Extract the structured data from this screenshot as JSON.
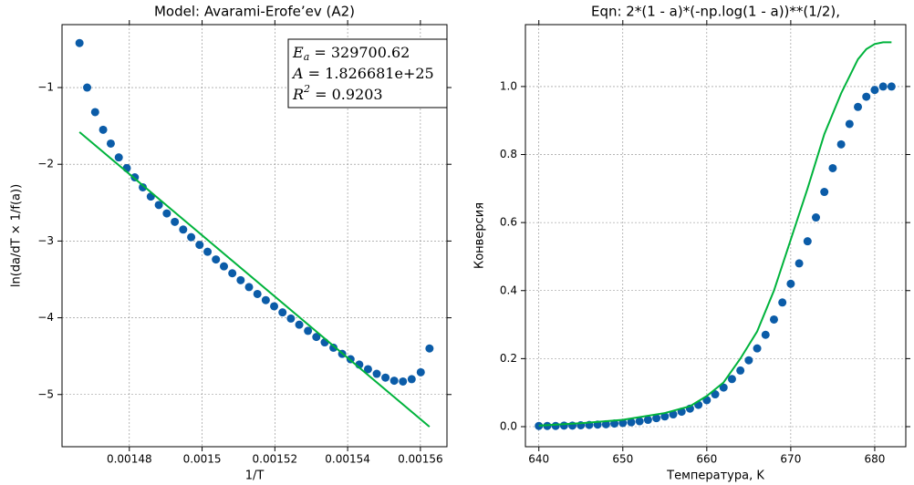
{
  "chart_data": [
    {
      "type": "scatter",
      "title": "Model: Avarami-Erofe’ev (A2)",
      "x_label": "1/T",
      "y_label": "ln(da/dT × 1/f(a))",
      "xlim": [
        0.0014615,
        0.0015673
      ],
      "ylim": [
        -5.68,
        -0.18
      ],
      "xticks": [
        0.00148,
        0.0015,
        0.00152,
        0.00154,
        0.00156
      ],
      "yticks": [
        {
          "value": -1,
          "label": "−1"
        },
        {
          "value": -2,
          "label": "−2"
        },
        {
          "value": -3,
          "label": "−3"
        },
        {
          "value": -4,
          "label": "−4"
        },
        {
          "value": -5,
          "label": "−5"
        }
      ],
      "grid": true,
      "annotations": [
        {
          "symbol": "E",
          "sub": "a",
          "text": " = 329700.62"
        },
        {
          "symbol": "A",
          "text": " = 1.826681e+25"
        },
        {
          "symbol": "R",
          "sup": "2",
          "text": " = 0.9203"
        }
      ],
      "series": [
        {
          "color": "#0b5ca8",
          "marker": "o",
          "x": [
            0.0014663,
            0.0014684,
            0.0014706,
            0.0014728,
            0.0014749,
            0.0014771,
            0.0014793,
            0.0014815,
            0.0014837,
            0.0014859,
            0.0014881,
            0.0014903,
            0.0014925,
            0.0014948,
            0.001497,
            0.0014993,
            0.0015015,
            0.0015038,
            0.001506,
            0.0015083,
            0.0015106,
            0.0015129,
            0.0015152,
            0.0015175,
            0.0015198,
            0.0015221,
            0.0015244,
            0.0015267,
            0.0015291,
            0.0015314,
            0.0015337,
            0.0015361,
            0.0015385,
            0.0015408,
            0.0015432,
            0.0015456,
            0.001548,
            0.0015504,
            0.0015528,
            0.0015552,
            0.0015576,
            0.0015601,
            0.0015625
          ],
          "values": [
            -0.42,
            -1.0,
            -1.32,
            -1.55,
            -1.73,
            -1.91,
            -2.05,
            -2.17,
            -2.3,
            -2.42,
            -2.53,
            -2.64,
            -2.75,
            -2.85,
            -2.95,
            -3.05,
            -3.14,
            -3.24,
            -3.33,
            -3.42,
            -3.51,
            -3.6,
            -3.69,
            -3.77,
            -3.85,
            -3.93,
            -4.01,
            -4.09,
            -4.17,
            -4.25,
            -4.32,
            -4.39,
            -4.47,
            -4.54,
            -4.61,
            -4.67,
            -4.73,
            -4.78,
            -4.82,
            -4.83,
            -4.8,
            -4.71,
            -4.4
          ]
        },
        {
          "color": "#00b33c",
          "linestyle": "-",
          "x": [
            0.0014663,
            0.0015625
          ],
          "values": [
            -1.58,
            -5.42
          ]
        }
      ]
    },
    {
      "type": "scatter",
      "title": "Eqn: 2*(1 - a)*(-np.log(1 - a))**(1/2),",
      "x_label": "Температура, K",
      "y_label": "Конверсия",
      "xlim": [
        638.4,
        683.7
      ],
      "ylim": [
        -0.059,
        1.182
      ],
      "xticks": [
        640,
        650,
        660,
        670,
        680
      ],
      "yticks": [
        {
          "value": 0,
          "label": "0.0"
        },
        0.2,
        0.4,
        0.6,
        0.8,
        {
          "value": 1,
          "label": "1.0"
        }
      ],
      "grid": true,
      "series": [
        {
          "color": "#0b5ca8",
          "marker": "o",
          "x": [
            640,
            641,
            642,
            643,
            644,
            645,
            646,
            647,
            648,
            649,
            650,
            651,
            652,
            653,
            654,
            655,
            656,
            657,
            658,
            659,
            660,
            661,
            662,
            663,
            664,
            665,
            666,
            667,
            668,
            669,
            670,
            671,
            672,
            673,
            674,
            675,
            676,
            677,
            678,
            679,
            680,
            681,
            682
          ],
          "values": [
            0.002,
            0.002,
            0.002,
            0.003,
            0.003,
            0.004,
            0.005,
            0.006,
            0.007,
            0.009,
            0.011,
            0.013,
            0.016,
            0.02,
            0.025,
            0.03,
            0.036,
            0.044,
            0.053,
            0.064,
            0.078,
            0.095,
            0.115,
            0.14,
            0.165,
            0.195,
            0.23,
            0.27,
            0.315,
            0.365,
            0.42,
            0.48,
            0.545,
            0.615,
            0.69,
            0.76,
            0.83,
            0.89,
            0.94,
            0.97,
            0.99,
            1.0,
            1.0
          ]
        },
        {
          "color": "#00b33c",
          "linestyle": "-",
          "x": [
            640,
            645,
            650,
            655,
            658,
            660,
            662,
            664,
            666,
            668,
            670,
            672,
            674,
            676,
            678,
            679,
            680,
            681,
            682
          ],
          "values": [
            0.003,
            0.01,
            0.02,
            0.04,
            0.06,
            0.09,
            0.13,
            0.2,
            0.28,
            0.4,
            0.55,
            0.7,
            0.86,
            0.98,
            1.08,
            1.11,
            1.125,
            1.13,
            1.13
          ]
        }
      ]
    }
  ]
}
